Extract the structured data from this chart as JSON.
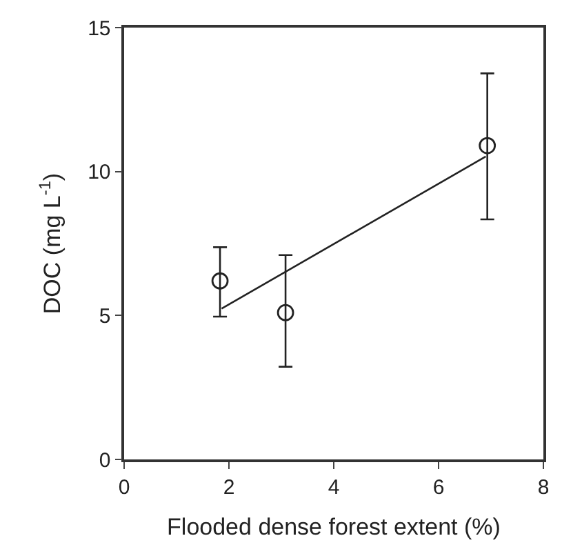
{
  "chart_data": {
    "type": "scatter",
    "xlabel": "Flooded dense forest extent (%)",
    "ylabel": "DOC (mg L$^{-1}$)",
    "xlim": [
      0,
      8
    ],
    "xticks": [
      0,
      2,
      4,
      6,
      8
    ],
    "ylim": [
      0,
      15
    ],
    "yticks": [
      0,
      5,
      10,
      15
    ],
    "series": [
      {
        "marker": "circle",
        "color": "#222222",
        "x": [
          1.83,
          3.08,
          6.93
        ],
        "values": [
          6.2,
          5.1,
          10.9
        ],
        "errors": [
          [
            4.96,
            7.37
          ],
          [
            3.22,
            7.1
          ],
          [
            8.34,
            13.41
          ]
        ]
      },
      {
        "type": "line",
        "color": "#222222",
        "x": [
          1.86,
          6.9
        ],
        "values": [
          5.24,
          10.52
        ],
        "line_style": "solid",
        "marker": "none"
      }
    ]
  }
}
